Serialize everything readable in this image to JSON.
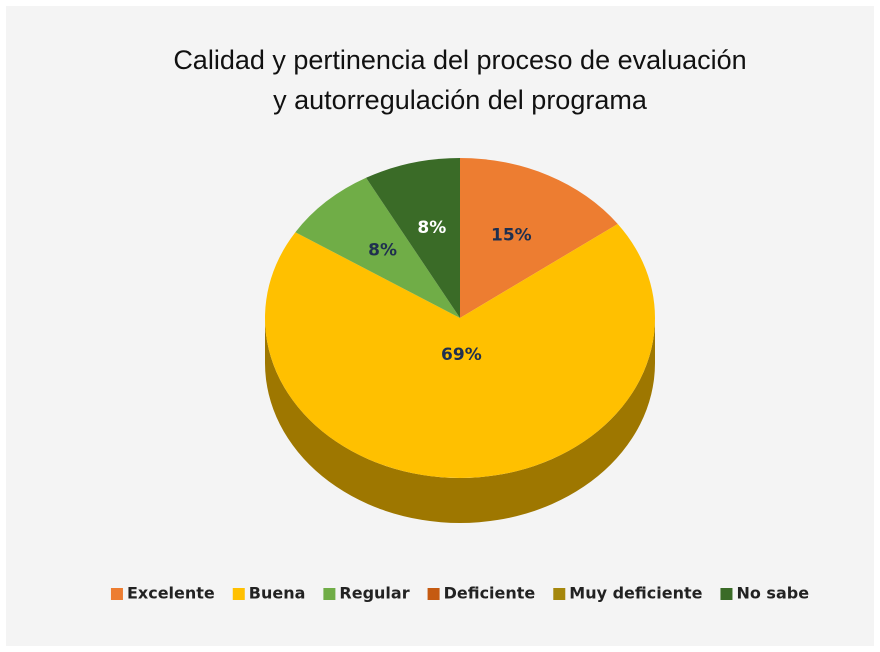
{
  "chart_data": {
    "type": "pie3d",
    "title": [
      "Calidad y pertinencia del proceso de evaluación",
      "y autorregulación del programa"
    ],
    "categories": [
      "Excelente",
      "Buena",
      "Regular",
      "Deficiente",
      "Muy deficiente",
      "No sabe"
    ],
    "values": [
      15,
      69,
      8,
      0,
      0,
      8
    ],
    "value_labels": [
      "15%",
      "69%",
      "8%",
      null,
      null,
      "8%"
    ],
    "colors": [
      "#ed7d31",
      "#ffc000",
      "#70ad47",
      "#c55a11",
      "#a5870c",
      "#3a6b27"
    ],
    "legend": "bottom"
  }
}
